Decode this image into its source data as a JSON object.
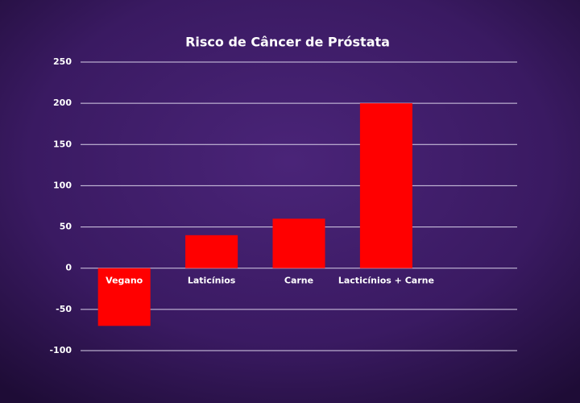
{
  "chart_data": {
    "type": "bar",
    "title": "Risco de Câncer de Próstata",
    "categories": [
      "Vegano",
      "Laticínios",
      "Carne",
      "Lacticínios + Carne",
      null
    ],
    "values": [
      -70,
      40,
      60,
      200,
      null
    ],
    "color": "#ff0000",
    "ylim": [
      -100,
      250
    ],
    "yticks": [
      -100,
      -50,
      0,
      50,
      100,
      150,
      200,
      250
    ],
    "grid": true
  }
}
